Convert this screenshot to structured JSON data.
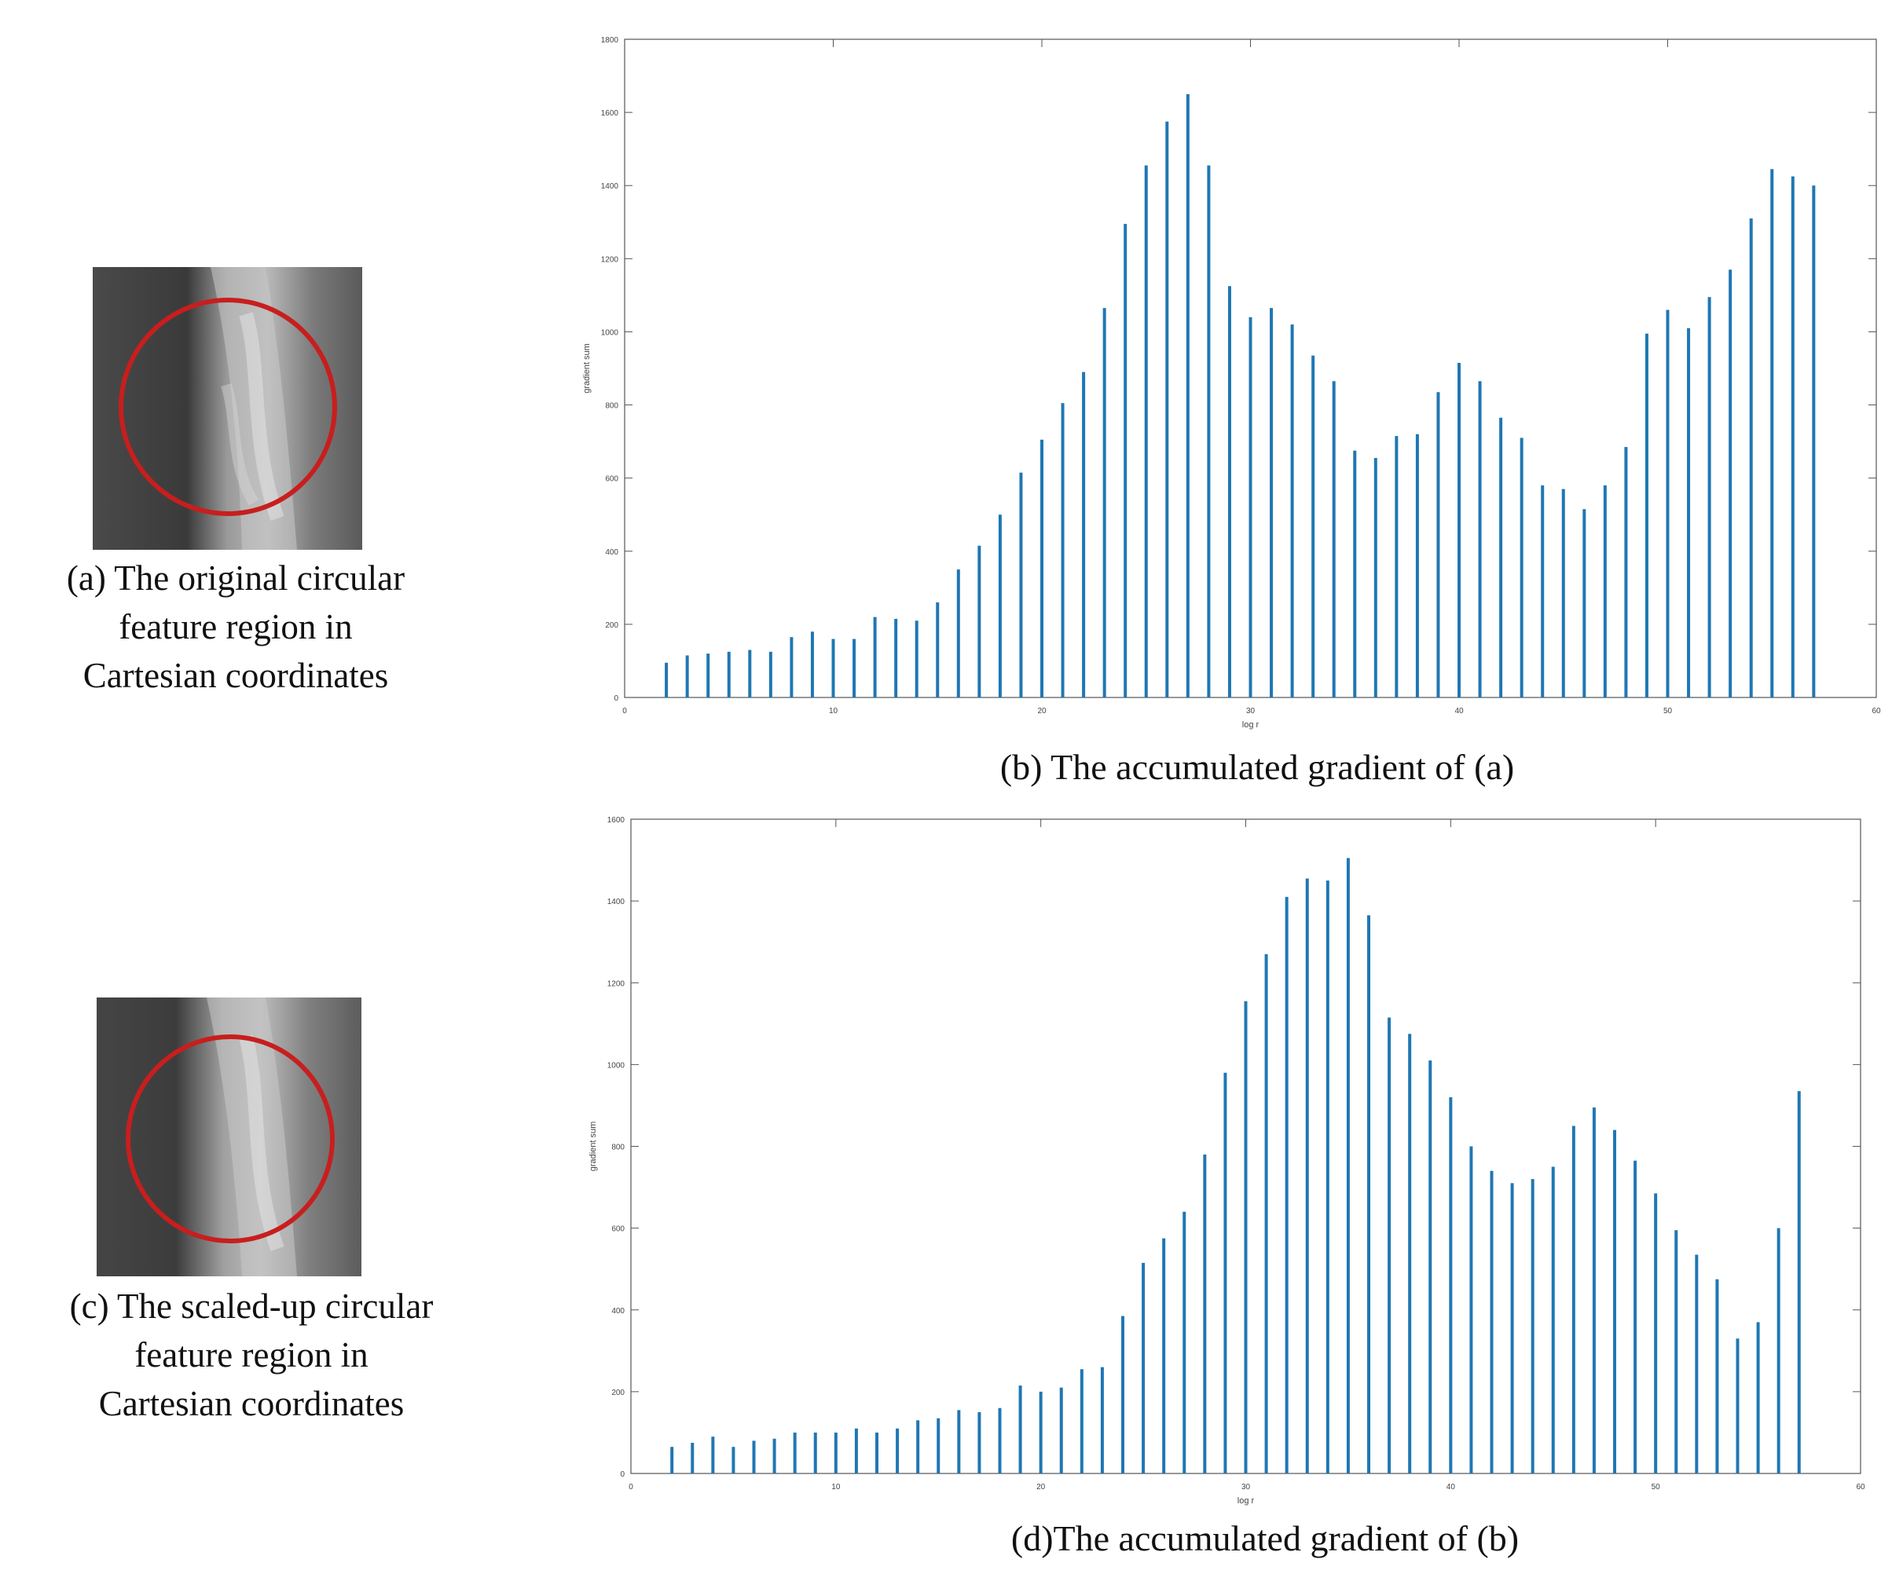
{
  "panels": {
    "a": {
      "caption_lines": [
        "(a) The original circular",
        "feature region in",
        "Cartesian coordinates"
      ]
    },
    "c": {
      "caption_lines": [
        "(c) The scaled-up circular",
        "feature region in",
        "Cartesian coordinates"
      ]
    }
  },
  "colors": {
    "bar": "#1f77b4",
    "circle": "#c81e1e",
    "axis": "#555555"
  },
  "chart_data": [
    {
      "id": "b",
      "type": "bar",
      "title": "(b) The accumulated gradient of (a)",
      "xlabel": "log r",
      "ylabel": "gradient sum",
      "xlim": [
        0,
        60
      ],
      "ylim": [
        0,
        1800
      ],
      "xticks": [
        0,
        10,
        20,
        30,
        40,
        50,
        60
      ],
      "yticks": [
        0,
        200,
        400,
        600,
        800,
        1000,
        1200,
        1400,
        1600,
        1800
      ],
      "x": [
        2,
        3,
        4,
        5,
        6,
        7,
        8,
        9,
        10,
        11,
        12,
        13,
        14,
        15,
        16,
        17,
        18,
        19,
        20,
        21,
        22,
        23,
        24,
        25,
        26,
        27,
        28,
        29,
        30,
        31,
        32,
        33,
        34,
        35,
        36,
        37,
        38,
        39,
        40,
        41,
        42,
        43,
        44,
        45,
        46,
        47,
        48,
        49,
        50,
        51,
        52,
        53,
        54,
        55,
        56,
        57
      ],
      "values": [
        95,
        115,
        120,
        125,
        130,
        125,
        165,
        180,
        160,
        160,
        220,
        215,
        210,
        260,
        350,
        415,
        500,
        615,
        705,
        805,
        890,
        1065,
        1295,
        1455,
        1575,
        1650,
        1455,
        1125,
        1040,
        1065,
        1020,
        935,
        865,
        675,
        655,
        715,
        720,
        835,
        915,
        865,
        765,
        710,
        580,
        570,
        515,
        580,
        685,
        995,
        1060,
        1010,
        1095,
        1170,
        1310,
        1445,
        1425,
        1400
      ]
    },
    {
      "id": "d",
      "type": "bar",
      "title": "(d)The accumulated gradient of (b)",
      "xlabel": "log r",
      "ylabel": "gradient sum",
      "xlim": [
        0,
        60
      ],
      "ylim": [
        0,
        1600
      ],
      "xticks": [
        0,
        10,
        20,
        30,
        40,
        50,
        60
      ],
      "yticks": [
        0,
        200,
        400,
        600,
        800,
        1000,
        1200,
        1400,
        1600
      ],
      "x": [
        2,
        3,
        4,
        5,
        6,
        7,
        8,
        9,
        10,
        11,
        12,
        13,
        14,
        15,
        16,
        17,
        18,
        19,
        20,
        21,
        22,
        23,
        24,
        25,
        26,
        27,
        28,
        29,
        30,
        31,
        32,
        33,
        34,
        35,
        36,
        37,
        38,
        39,
        40,
        41,
        42,
        43,
        44,
        45,
        46,
        47,
        48,
        49,
        50,
        51,
        52,
        53,
        54,
        55,
        56,
        57
      ],
      "values": [
        65,
        75,
        90,
        65,
        80,
        85,
        100,
        100,
        100,
        110,
        100,
        110,
        130,
        135,
        155,
        150,
        160,
        215,
        200,
        210,
        255,
        260,
        385,
        515,
        575,
        640,
        780,
        980,
        1155,
        1270,
        1410,
        1455,
        1450,
        1505,
        1365,
        1115,
        1075,
        1010,
        920,
        800,
        740,
        710,
        720,
        750,
        850,
        895,
        840,
        765,
        685,
        595,
        535,
        475,
        330,
        370,
        600,
        935
      ]
    }
  ]
}
